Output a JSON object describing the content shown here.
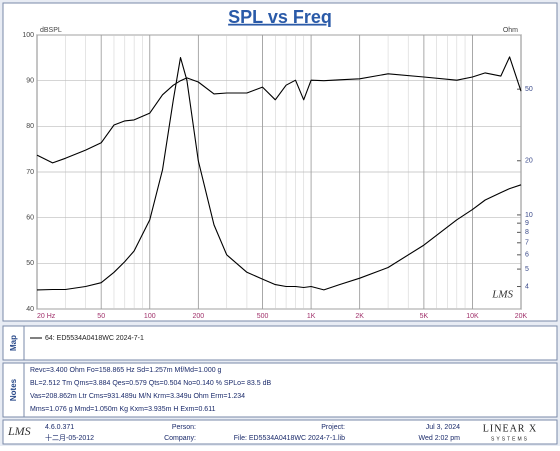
{
  "chart_data": {
    "type": "line",
    "title": "SPL vs Freq",
    "y_label": "dBSPL",
    "y2_label": "Ohm",
    "watermark": "LMS",
    "x": [
      20,
      25,
      30,
      40,
      50,
      60,
      70,
      80,
      100,
      120,
      140,
      155,
      170,
      200,
      250,
      300,
      400,
      500,
      600,
      700,
      800,
      900,
      1000,
      1200,
      1500,
      2000,
      3000,
      5000,
      8000,
      10000,
      12000,
      15000,
      17000,
      20000
    ],
    "series": [
      {
        "name": "64: ED5534A0418WC 2024-7-1",
        "color": "#000000",
        "values": [
          73.7,
          72,
          73,
          74.8,
          76.4,
          80.3,
          81.2,
          81.4,
          82.9,
          86.9,
          89,
          90,
          90.6,
          89.7,
          87.1,
          87.3,
          87.3,
          88.6,
          85.8,
          89,
          90.1,
          85.8,
          90.1,
          90,
          90.2,
          90.4,
          91.5,
          90.8,
          90.1,
          90.8,
          91.7,
          91,
          95.2,
          87.7
        ]
      },
      {
        "color": "#000000",
        "axis": "y2",
        "values": [
          3.83,
          3.85,
          3.85,
          4.0,
          4.2,
          4.8,
          5.5,
          6.3,
          9.4,
          17.8,
          43.6,
          75,
          56,
          20,
          8.8,
          6.0,
          4.8,
          4.4,
          4.1,
          4.0,
          4.0,
          3.95,
          4.0,
          3.83,
          4.1,
          4.45,
          5.1,
          6.8,
          9.4,
          10.7,
          12.1,
          13.3,
          14,
          14.7
        ]
      }
    ],
    "xscale": "log",
    "xlim": [
      20,
      20000
    ],
    "xticks": [
      {
        "value": 20,
        "label": "20 Hz"
      },
      50,
      100,
      200,
      500,
      {
        "value": 1000,
        "label": "1K"
      },
      {
        "value": 2000,
        "label": "2K"
      },
      {
        "value": 5000,
        "label": "5K"
      },
      {
        "value": 10000,
        "label": "10K"
      },
      {
        "value": 20000,
        "label": "20K"
      }
    ],
    "ylim": [
      40,
      100
    ],
    "yticks": [
      40,
      50,
      60,
      70,
      80,
      90,
      100
    ],
    "y2scale": "log",
    "y2lim": [
      3,
      100
    ],
    "y2ticks": [
      4,
      5,
      6,
      7,
      8,
      9,
      10,
      20,
      50
    ],
    "grid": true
  },
  "map": {
    "label": "Map"
  },
  "notes": {
    "label": "Notes",
    "lines": [
      "Revc=3.400 Ohm  Fo=158.865 Hz  Sd=1.257m  Mf/Md=1.000 g",
      "BL=2.512 Tm  Qms=3.884  Qes=0.579  Qts=0.504  No=0.140 %  SPLo= 83.5 dB",
      "Vas=208.862m Ltr  Cms=931.489u M/N  Krm=3.349u Ohm  Erm=1.234",
      "Mms=1.076 g  Mmd=1.050m Kg  Kxm=3.935m H  Exm=0.611"
    ]
  },
  "footer": {
    "logo": "LMS",
    "version": "4.6.0.371",
    "build_date": "十二月-05-2012",
    "person": "Person:",
    "company": "Company:",
    "project": "Project:",
    "file": "File: ED5534A0418WC 2024-7-1.lib",
    "date": "Jul  3, 2024",
    "time": "Wed  2:02 pm",
    "brand": "LINEAR X",
    "brand_sub": "SYSTEMS"
  }
}
